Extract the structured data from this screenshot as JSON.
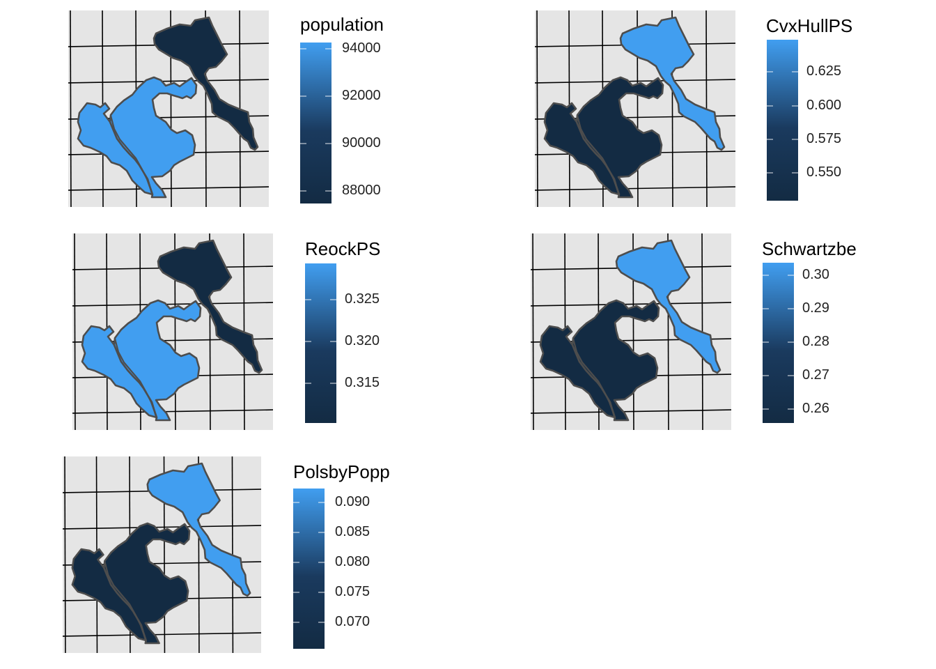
{
  "colors": {
    "high": "#419ef0",
    "low": "#132b43",
    "panel_background": "#e5e5e5",
    "grid": "#000000",
    "border": "#4d4d4d"
  },
  "panels": [
    {
      "id": "population",
      "legend_title": "population",
      "ticks": [
        "94000",
        "92000",
        "90000",
        "88000"
      ],
      "fills": {
        "west": "high",
        "center": "high",
        "north": "low"
      }
    },
    {
      "id": "cvxhull",
      "legend_title": "CvxHullPS",
      "ticks": [
        "0.625",
        "0.600",
        "0.575",
        "0.550"
      ],
      "fills": {
        "west": "low",
        "center": "low",
        "north": "high"
      }
    },
    {
      "id": "reock",
      "legend_title": "ReockPS",
      "ticks": [
        "0.325",
        "0.320",
        "0.315"
      ],
      "fills": {
        "west": "high",
        "center": "high",
        "north": "low"
      }
    },
    {
      "id": "schwartz",
      "legend_title": "Schwartzbe",
      "ticks": [
        "0.30",
        "0.29",
        "0.28",
        "0.27",
        "0.26"
      ],
      "fills": {
        "west": "low",
        "center": "low",
        "north": "high"
      }
    },
    {
      "id": "polsby",
      "legend_title": "PolsbyPopp",
      "ticks": [
        "0.090",
        "0.085",
        "0.080",
        "0.075",
        "0.070"
      ],
      "fills": {
        "west": "low",
        "center": "low",
        "north": "high"
      }
    }
  ]
}
